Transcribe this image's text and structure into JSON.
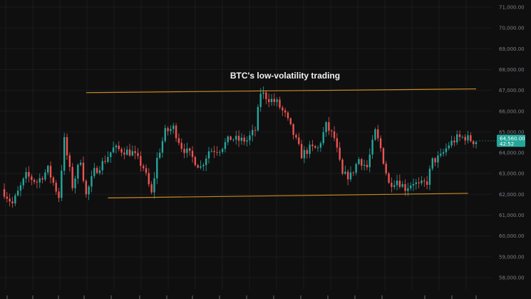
{
  "chart_data": {
    "type": "candlestick",
    "title": "BTC's low-volatility trading",
    "ylim": [
      57500,
      71400
    ],
    "y_ticks": [
      58000,
      59000,
      60000,
      61000,
      62000,
      63000,
      64000,
      65000,
      66000,
      67000,
      68000,
      69000,
      70000,
      71000
    ],
    "y_tick_labels": [
      "58,000.00",
      "59,000.00",
      "60,000.00",
      "61,000.00",
      "62,000.00",
      "63,000.00",
      "64,000.00",
      "65,000.00",
      "66,000.00",
      "67,000.00",
      "68,000.00",
      "69,000.00",
      "70,000.00",
      "71,000.00"
    ],
    "current_price": 64560,
    "price_tag": [
      "64,560.00",
      "42:52"
    ],
    "colors": {
      "up": "#26a69a",
      "down": "#ef5350",
      "trendline": "#c8891e",
      "price_tag": "#26a69a",
      "grid": "#1b1b1d"
    },
    "trendlines": [
      {
        "name": "resistance",
        "from": {
          "i": 30,
          "price": 66890
        },
        "to": {
          "i": 173,
          "price": 67070
        }
      },
      {
        "name": "support",
        "from": {
          "i": 38,
          "price": 61830
        },
        "to": {
          "i": 170,
          "price": 62050
        }
      }
    ],
    "close_path": [
      [
        0,
        62100
      ],
      [
        3,
        61550
      ],
      [
        8,
        62900
      ],
      [
        12,
        62600
      ],
      [
        16,
        63200
      ],
      [
        20,
        61900
      ],
      [
        22,
        64600
      ],
      [
        25,
        62400
      ],
      [
        28,
        63700
      ],
      [
        30,
        61950
      ],
      [
        33,
        63100
      ],
      [
        36,
        63500
      ],
      [
        40,
        64200
      ],
      [
        44,
        64100
      ],
      [
        47,
        64000
      ],
      [
        51,
        63300
      ],
      [
        54,
        62000
      ],
      [
        56,
        63700
      ],
      [
        59,
        65000
      ],
      [
        62,
        65200
      ],
      [
        65,
        64300
      ],
      [
        68,
        63900
      ],
      [
        72,
        63300
      ],
      [
        75,
        64100
      ],
      [
        79,
        64200
      ],
      [
        83,
        64700
      ],
      [
        86,
        64600
      ],
      [
        89,
        64600
      ],
      [
        92,
        65100
      ],
      [
        94,
        66900
      ],
      [
        97,
        66600
      ],
      [
        100,
        66400
      ],
      [
        103,
        65800
      ],
      [
        106,
        64900
      ],
      [
        109,
        63900
      ],
      [
        112,
        64200
      ],
      [
        115,
        64200
      ],
      [
        118,
        65300
      ],
      [
        121,
        64700
      ],
      [
        124,
        62900
      ],
      [
        127,
        62900
      ],
      [
        130,
        63700
      ],
      [
        133,
        63300
      ],
      [
        136,
        65000
      ],
      [
        138,
        64200
      ],
      [
        141,
        62500
      ],
      [
        144,
        62700
      ],
      [
        147,
        62300
      ],
      [
        150,
        62600
      ],
      [
        152,
        62400
      ],
      [
        155,
        62600
      ],
      [
        157,
        63600
      ],
      [
        160,
        63800
      ],
      [
        163,
        64400
      ],
      [
        166,
        64700
      ],
      [
        169,
        64750
      ],
      [
        172,
        64560
      ]
    ],
    "n_candles": 174
  }
}
